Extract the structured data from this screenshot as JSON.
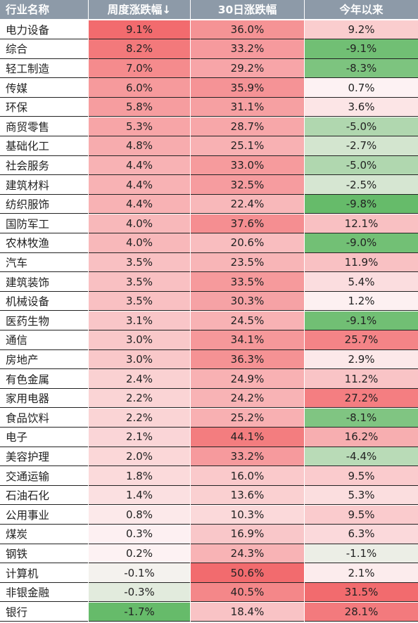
{
  "chart_data": {
    "type": "table",
    "columns": [
      "行业名称",
      "周度涨跌幅↓",
      "30日涨跌幅",
      "今年以来"
    ],
    "rows": [
      {
        "name": "电力设备",
        "weekly": "9.1%",
        "d30": "36.0%",
        "ytd": "9.2%"
      },
      {
        "name": "综合",
        "weekly": "8.2%",
        "d30": "33.2%",
        "ytd": "-9.1%"
      },
      {
        "name": "轻工制造",
        "weekly": "7.0%",
        "d30": "29.2%",
        "ytd": "-8.3%"
      },
      {
        "name": "传媒",
        "weekly": "6.0%",
        "d30": "35.9%",
        "ytd": "0.7%"
      },
      {
        "name": "环保",
        "weekly": "5.8%",
        "d30": "31.1%",
        "ytd": "3.6%"
      },
      {
        "name": "商贸零售",
        "weekly": "5.3%",
        "d30": "28.7%",
        "ytd": "-5.0%"
      },
      {
        "name": "基础化工",
        "weekly": "4.8%",
        "d30": "25.1%",
        "ytd": "-2.7%"
      },
      {
        "name": "社会服务",
        "weekly": "4.4%",
        "d30": "33.0%",
        "ytd": "-5.0%"
      },
      {
        "name": "建筑材料",
        "weekly": "4.4%",
        "d30": "32.5%",
        "ytd": "-2.5%"
      },
      {
        "name": "纺织服饰",
        "weekly": "4.4%",
        "d30": "22.4%",
        "ytd": "-9.8%"
      },
      {
        "name": "国防军工",
        "weekly": "4.0%",
        "d30": "37.6%",
        "ytd": "12.1%"
      },
      {
        "name": "农林牧渔",
        "weekly": "4.0%",
        "d30": "20.6%",
        "ytd": "-9.0%"
      },
      {
        "name": "汽车",
        "weekly": "3.5%",
        "d30": "23.5%",
        "ytd": "11.9%"
      },
      {
        "name": "建筑装饰",
        "weekly": "3.5%",
        "d30": "33.5%",
        "ytd": "5.4%"
      },
      {
        "name": "机械设备",
        "weekly": "3.5%",
        "d30": "30.3%",
        "ytd": "1.2%"
      },
      {
        "name": "医药生物",
        "weekly": "3.1%",
        "d30": "24.5%",
        "ytd": "-9.1%"
      },
      {
        "name": "通信",
        "weekly": "3.0%",
        "d30": "34.1%",
        "ytd": "25.7%"
      },
      {
        "name": "房地产",
        "weekly": "3.0%",
        "d30": "36.3%",
        "ytd": "2.9%"
      },
      {
        "name": "有色金属",
        "weekly": "2.4%",
        "d30": "24.9%",
        "ytd": "11.2%"
      },
      {
        "name": "家用电器",
        "weekly": "2.2%",
        "d30": "24.2%",
        "ytd": "27.2%"
      },
      {
        "name": "食品饮料",
        "weekly": "2.2%",
        "d30": "25.2%",
        "ytd": "-8.1%"
      },
      {
        "name": "电子",
        "weekly": "2.1%",
        "d30": "44.1%",
        "ytd": "16.2%"
      },
      {
        "name": "美容护理",
        "weekly": "2.0%",
        "d30": "33.2%",
        "ytd": "-4.4%"
      },
      {
        "name": "交通运输",
        "weekly": "1.8%",
        "d30": "16.0%",
        "ytd": "9.5%"
      },
      {
        "name": "石油石化",
        "weekly": "1.4%",
        "d30": "13.6%",
        "ytd": "5.3%"
      },
      {
        "name": "公用事业",
        "weekly": "0.8%",
        "d30": "10.3%",
        "ytd": "9.5%"
      },
      {
        "name": "煤炭",
        "weekly": "0.3%",
        "d30": "16.9%",
        "ytd": "6.3%"
      },
      {
        "name": "钢铁",
        "weekly": "0.2%",
        "d30": "24.3%",
        "ytd": "-1.1%"
      },
      {
        "name": "计算机",
        "weekly": "-0.1%",
        "d30": "50.6%",
        "ytd": "2.1%"
      },
      {
        "name": "非银金融",
        "weekly": "-0.3%",
        "d30": "40.5%",
        "ytd": "31.5%"
      },
      {
        "name": "银行",
        "weekly": "-1.7%",
        "d30": "18.4%",
        "ytd": "28.1%"
      }
    ]
  },
  "colors": {
    "header_bg": "#8d9aa8",
    "header_text": "#ffffff",
    "positive_max": "#f26b6e",
    "negative_max": "#66bb6a",
    "neutral": "#fdf5f6"
  }
}
